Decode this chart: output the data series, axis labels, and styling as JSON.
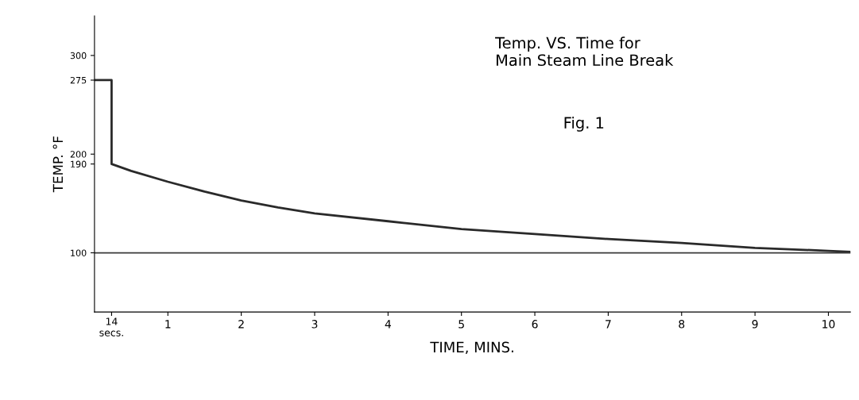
{
  "chart_data": {
    "type": "line",
    "title": "Temp. VS. Time for\nMain Steam Line Break",
    "annotations": [
      "Fig. 1",
      "14\nsecs."
    ],
    "xlabel": "TIME, MINS.",
    "ylabel": "TEMP. °F",
    "series": [
      {
        "color": "#2a2a2a",
        "x": [
          0,
          0.233,
          0.233,
          0.5,
          1,
          1.5,
          2,
          2.5,
          3,
          4,
          5,
          6,
          7,
          8,
          9,
          10,
          10.3
        ],
        "values": [
          275,
          275,
          190,
          183,
          172,
          162,
          153,
          146,
          140,
          132,
          124,
          119,
          114,
          110,
          105,
          102,
          101
        ]
      }
    ],
    "xlim": [
      0,
      10.3
    ],
    "xticks": [
      {
        "value": 0.233,
        "label": null
      },
      1,
      2,
      3,
      4,
      5,
      6,
      7,
      8,
      9,
      10
    ],
    "ylim": [
      40,
      340
    ],
    "yticks": [
      100,
      190,
      200,
      275,
      300
    ],
    "ref_lines": [
      {
        "axis": "y",
        "value": 100,
        "label": null,
        "color": "#3a3a3a"
      }
    ],
    "grid": false,
    "legend": false,
    "marker": "none",
    "line_style": "solid"
  }
}
